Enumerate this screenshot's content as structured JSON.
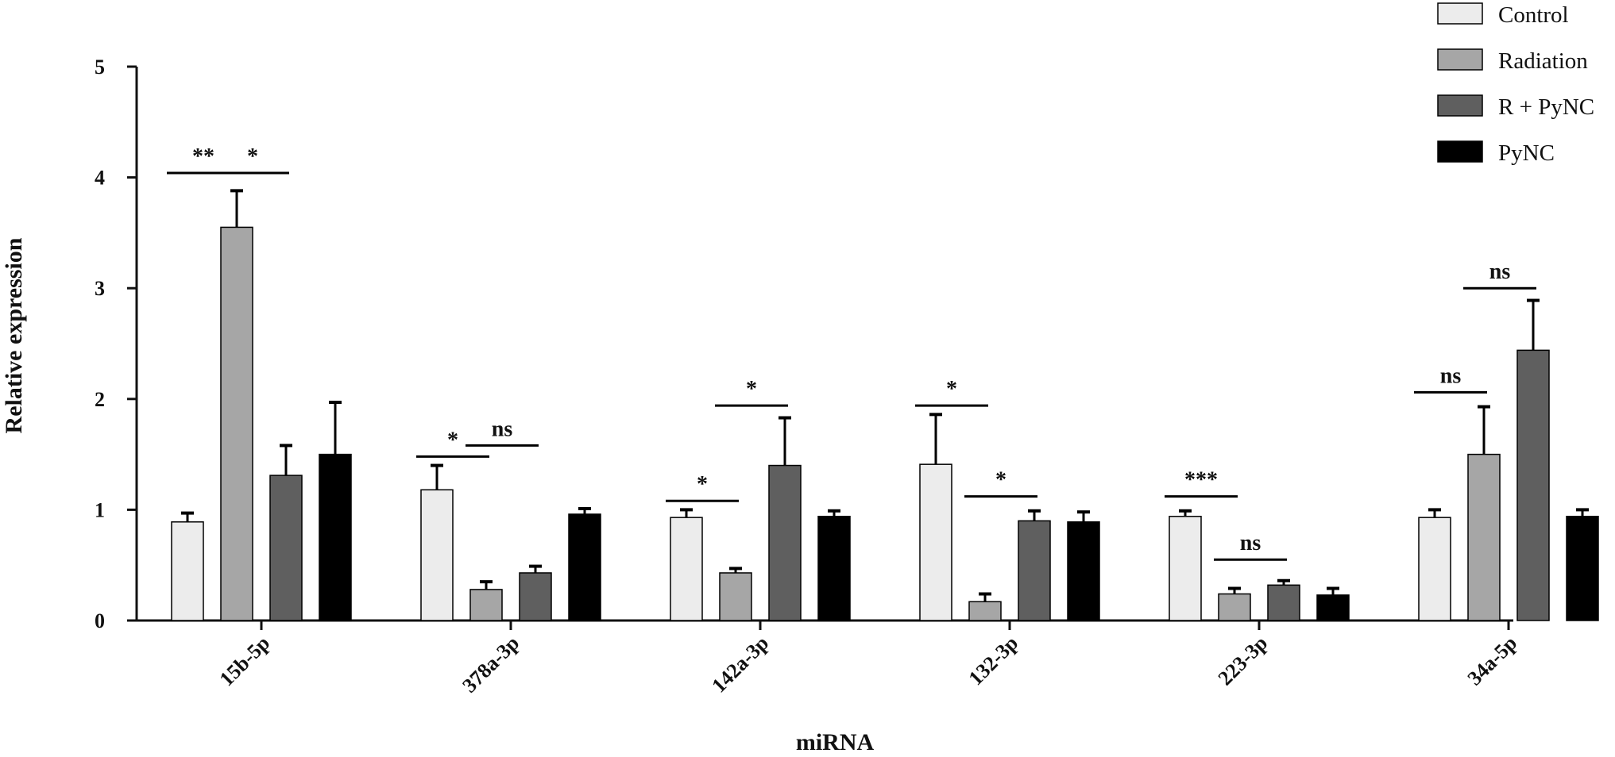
{
  "chart_data": {
    "type": "bar",
    "xlabel": "miRNA",
    "ylabel": "Relative expression",
    "ylim": [
      0,
      5
    ],
    "yticks": [
      0,
      1,
      2,
      3,
      4,
      5
    ],
    "grid": false,
    "legend_position": "top-right",
    "categories": [
      "15b-5p",
      "378a-3p",
      "142a-3p",
      "132-3p",
      "223-3p",
      "34a-5p"
    ],
    "series": [
      {
        "name": "Control",
        "color": "#ececec",
        "values": [
          0.89,
          1.18,
          0.93,
          1.41,
          0.94,
          0.93
        ],
        "errors": [
          0.08,
          0.22,
          0.07,
          0.45,
          0.05,
          0.07
        ]
      },
      {
        "name": "Radiation",
        "color": "#a6a6a6",
        "values": [
          3.55,
          0.28,
          0.43,
          0.17,
          0.24,
          1.5
        ],
        "errors": [
          0.33,
          0.07,
          0.04,
          0.07,
          0.05,
          0.43
        ]
      },
      {
        "name": "R + PyNC",
        "color": "#5f5f5f",
        "values": [
          1.31,
          0.43,
          1.4,
          0.9,
          0.32,
          2.44
        ],
        "errors": [
          0.27,
          0.06,
          0.43,
          0.09,
          0.04,
          0.45
        ]
      },
      {
        "name": "PyNC",
        "color": "#000000",
        "values": [
          1.5,
          0.96,
          0.94,
          0.89,
          0.23,
          0.94
        ],
        "errors": [
          0.47,
          0.05,
          0.05,
          0.09,
          0.06,
          0.06
        ]
      }
    ],
    "annotations": [
      {
        "text": "**",
        "category": 0,
        "from_series": 0,
        "to_series": 1,
        "y": 4.04
      },
      {
        "text": "*",
        "category": 0,
        "from_series": 1,
        "to_series": 2,
        "y": 4.04
      },
      {
        "text": "*",
        "category": 1,
        "from_series": 0,
        "to_series": 1,
        "y": 1.48
      },
      {
        "text": "ns",
        "category": 1,
        "from_series": 1,
        "to_series": 2,
        "y": 1.58
      },
      {
        "text": "*",
        "category": 2,
        "from_series": 0,
        "to_series": 1,
        "y": 1.08
      },
      {
        "text": "*",
        "category": 2,
        "from_series": 1,
        "to_series": 2,
        "y": 1.94
      },
      {
        "text": "*",
        "category": 3,
        "from_series": 0,
        "to_series": 1,
        "y": 1.94
      },
      {
        "text": "*",
        "category": 3,
        "from_series": 1,
        "to_series": 2,
        "y": 1.12
      },
      {
        "text": "***",
        "category": 4,
        "from_series": 0,
        "to_series": 1,
        "y": 1.12
      },
      {
        "text": "ns",
        "category": 4,
        "from_series": 1,
        "to_series": 2,
        "y": 0.55
      },
      {
        "text": "ns",
        "category": 5,
        "from_series": 0,
        "to_series": 1,
        "y": 2.06
      },
      {
        "text": "ns",
        "category": 5,
        "from_series": 1,
        "to_series": 2,
        "y": 3.0
      }
    ]
  }
}
